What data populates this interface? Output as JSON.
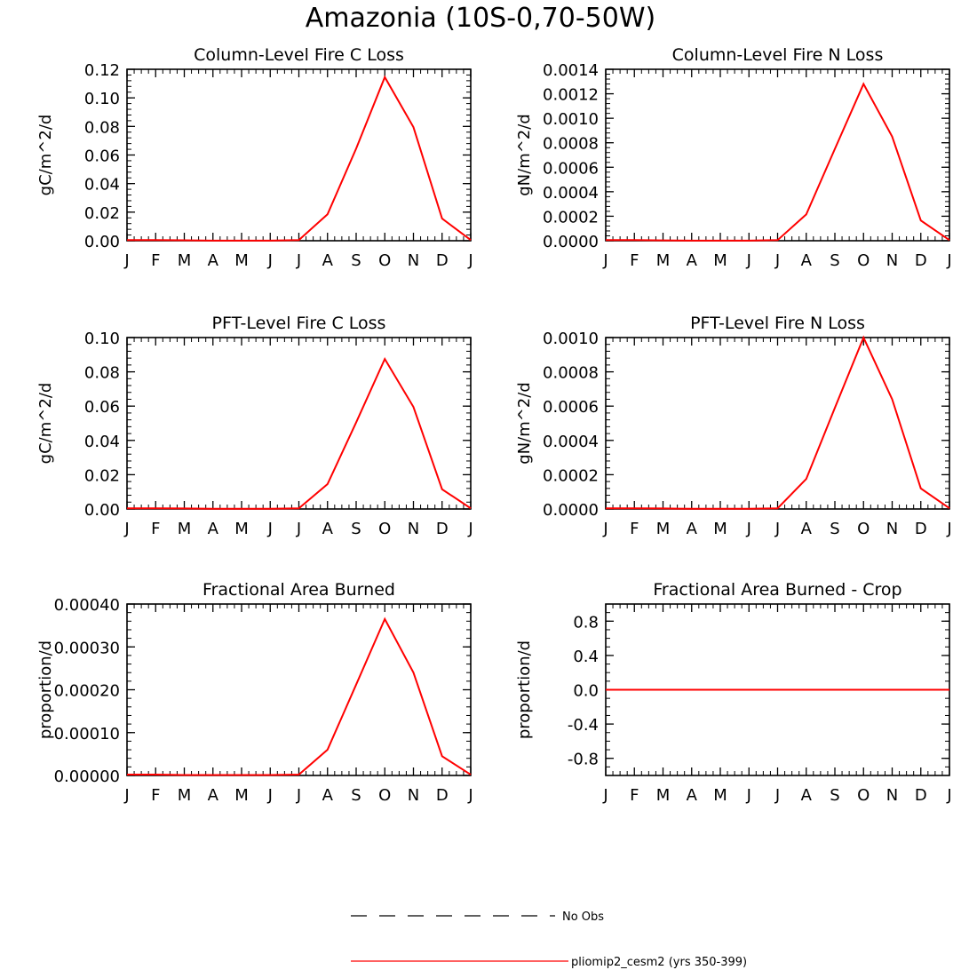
{
  "figure_title": "Amazonia (10S-0,70-50W)",
  "chart_data": [
    {
      "type": "line",
      "title": "Column-Level Fire C Loss",
      "ylabel": "gC/m^2/d",
      "categories": [
        "J",
        "F",
        "M",
        "A",
        "M",
        "J",
        "J",
        "A",
        "S",
        "O",
        "N",
        "D",
        "J"
      ],
      "ylim": [
        0,
        0.12
      ],
      "yticks": [
        "0.00",
        "0.02",
        "0.04",
        "0.06",
        "0.08",
        "0.10",
        "0.12"
      ],
      "yminor": 5,
      "series": [
        {
          "name": "pliomip2_cesm2 (yrs 350-399)",
          "color": "#ff0000",
          "values": [
            0.0005,
            0.0005,
            0.0003,
            0.0001,
            0.0001,
            0.0001,
            0.0005,
            0.0185,
            0.0645,
            0.1145,
            0.0795,
            0.0155,
            0.0005
          ]
        }
      ]
    },
    {
      "type": "line",
      "title": "Column-Level Fire N Loss",
      "ylabel": "gN/m^2/d",
      "categories": [
        "J",
        "F",
        "M",
        "A",
        "M",
        "J",
        "J",
        "A",
        "S",
        "O",
        "N",
        "D",
        "J"
      ],
      "ylim": [
        0,
        0.0014
      ],
      "yticks": [
        "0.0000",
        "0.0002",
        "0.0004",
        "0.0006",
        "0.0008",
        "0.0010",
        "0.0012",
        "0.0014"
      ],
      "yminor": 5,
      "series": [
        {
          "name": "pliomip2_cesm2 (yrs 350-399)",
          "color": "#ff0000",
          "values": [
            5e-06,
            5e-06,
            3e-06,
            1e-06,
            1e-06,
            1e-06,
            5e-06,
            0.000215,
            0.00075,
            0.00128,
            0.00085,
            0.000165,
            5e-06
          ]
        }
      ]
    },
    {
      "type": "line",
      "title": "PFT-Level Fire C Loss",
      "ylabel": "gC/m^2/d",
      "categories": [
        "J",
        "F",
        "M",
        "A",
        "M",
        "J",
        "J",
        "A",
        "S",
        "O",
        "N",
        "D",
        "J"
      ],
      "ylim": [
        0,
        0.1
      ],
      "yticks": [
        "0.00",
        "0.02",
        "0.04",
        "0.06",
        "0.08",
        "0.10"
      ],
      "yminor": 5,
      "series": [
        {
          "name": "pliomip2_cesm2 (yrs 350-399)",
          "color": "#ff0000",
          "values": [
            0.0004,
            0.0004,
            0.0003,
            0.0001,
            0.0001,
            0.0001,
            0.0004,
            0.0145,
            0.0505,
            0.0875,
            0.0595,
            0.0115,
            0.0004
          ]
        }
      ]
    },
    {
      "type": "line",
      "title": "PFT-Level Fire N Loss",
      "ylabel": "gN/m^2/d",
      "categories": [
        "J",
        "F",
        "M",
        "A",
        "M",
        "J",
        "J",
        "A",
        "S",
        "O",
        "N",
        "D",
        "J"
      ],
      "ylim": [
        0,
        0.001
      ],
      "yticks": [
        "0.0000",
        "0.0002",
        "0.0004",
        "0.0006",
        "0.0008",
        "0.0010"
      ],
      "yminor": 5,
      "series": [
        {
          "name": "pliomip2_cesm2 (yrs 350-399)",
          "color": "#ff0000",
          "values": [
            4e-06,
            4e-06,
            3e-06,
            1e-06,
            1e-06,
            1e-06,
            4e-06,
            0.000175,
            0.00059,
            0.001,
            0.00064,
            0.00012,
            4e-06
          ]
        }
      ]
    },
    {
      "type": "line",
      "title": "Fractional Area Burned",
      "ylabel": "proportion/d",
      "categories": [
        "J",
        "F",
        "M",
        "A",
        "M",
        "J",
        "J",
        "A",
        "S",
        "O",
        "N",
        "D",
        "J"
      ],
      "ylim": [
        0,
        0.0004
      ],
      "yticks": [
        "0.00000",
        "0.00010",
        "0.00020",
        "0.00030",
        "0.00040"
      ],
      "yminor": 5,
      "series": [
        {
          "name": "pliomip2_cesm2 (yrs 350-399)",
          "color": "#ff0000",
          "values": [
            2e-06,
            2e-06,
            1e-06,
            1e-06,
            1e-06,
            1e-06,
            2e-06,
            6e-05,
            0.000212,
            0.000365,
            0.00024,
            4.5e-05,
            2e-06
          ]
        }
      ]
    },
    {
      "type": "line",
      "title": "Fractional Area Burned - Crop",
      "ylabel": "proportion/d",
      "categories": [
        "J",
        "F",
        "M",
        "A",
        "M",
        "J",
        "J",
        "A",
        "S",
        "O",
        "N",
        "D",
        "J"
      ],
      "ylim": [
        -1,
        1
      ],
      "yticks": [
        "-0.8",
        "-0.4",
        "0.0",
        "0.4",
        "0.8"
      ],
      "ytick_values": [
        -0.8,
        -0.4,
        0,
        0.4,
        0.8
      ],
      "yminor": 4,
      "series": [
        {
          "name": "pliomip2_cesm2 (yrs 350-399)",
          "color": "#ff0000",
          "values": [
            0,
            0,
            0,
            0,
            0,
            0,
            0,
            0,
            0,
            0,
            0,
            0,
            0
          ]
        }
      ]
    }
  ],
  "legend": {
    "entries": [
      {
        "label": "No Obs",
        "style": "dashed",
        "color": "#000000"
      },
      {
        "label": "pliomip2_cesm2 (yrs 350-399)",
        "style": "solid",
        "color": "#ff0000"
      }
    ]
  }
}
